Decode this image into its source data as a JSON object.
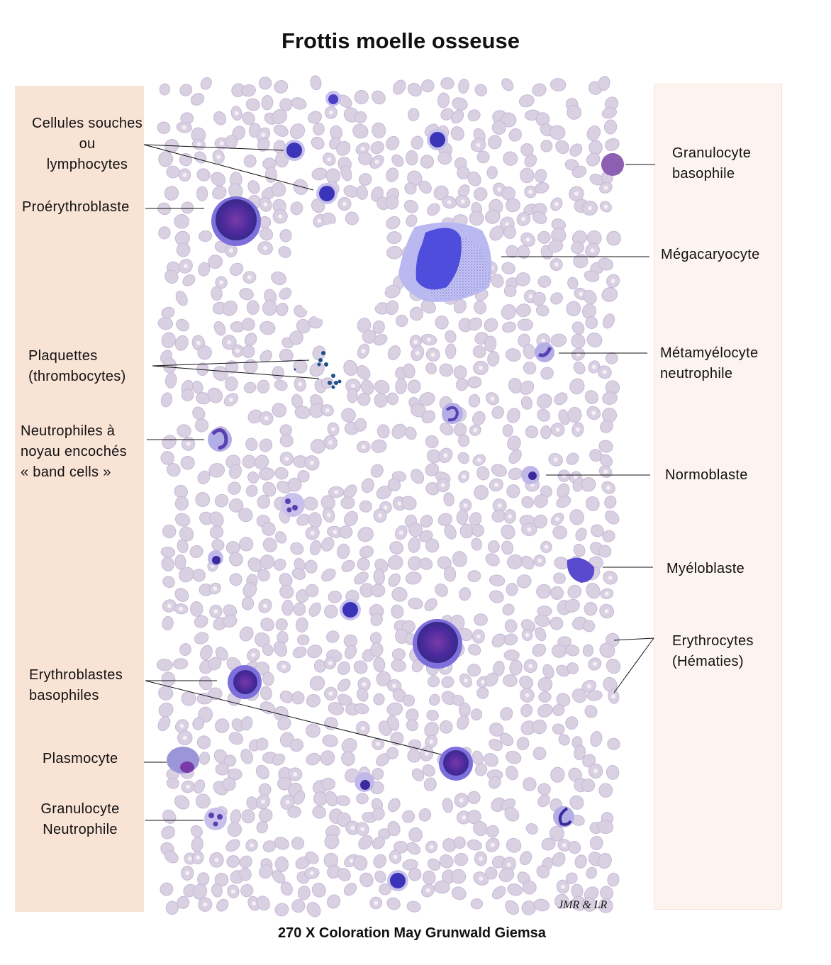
{
  "title": "Frottis moelle osseuse",
  "caption": "270 X Coloration May Grunwald Giemsa",
  "signature": "JMR  & LR",
  "colors": {
    "left_panel": "#f9e3d5",
    "right_panel": "#fdf4ef",
    "erythrocyte": "#d9d0e2",
    "nucleus": "#4a3fc4",
    "cytoplasm": "#8b7fe0"
  },
  "labels_left": {
    "stem_cells": "Cellules souches\nou\nlymphocytes",
    "proerythroblast": "Proérythroblaste",
    "platelets": "Plaquettes\n(thrombocytes)",
    "band_cells": "Neutrophiles à\nnoyau encochés\n« band cells »",
    "basophilic_erythroblasts": "Erythroblastes\nbasophiles",
    "plasmocyte": "Plasmocyte",
    "neutrophil": "Granulocyte\nNeutrophile"
  },
  "labels_right": {
    "basophil": "Granulocyte\nbasophile",
    "megakaryocyte": "Mégacaryocyte",
    "metamyelocyte": "Métamyélocyte\nneutrophile",
    "normoblast": "Normoblaste",
    "myeloblast": "Myéloblaste",
    "erythrocytes": "Erythrocytes\n(Hématies)"
  }
}
